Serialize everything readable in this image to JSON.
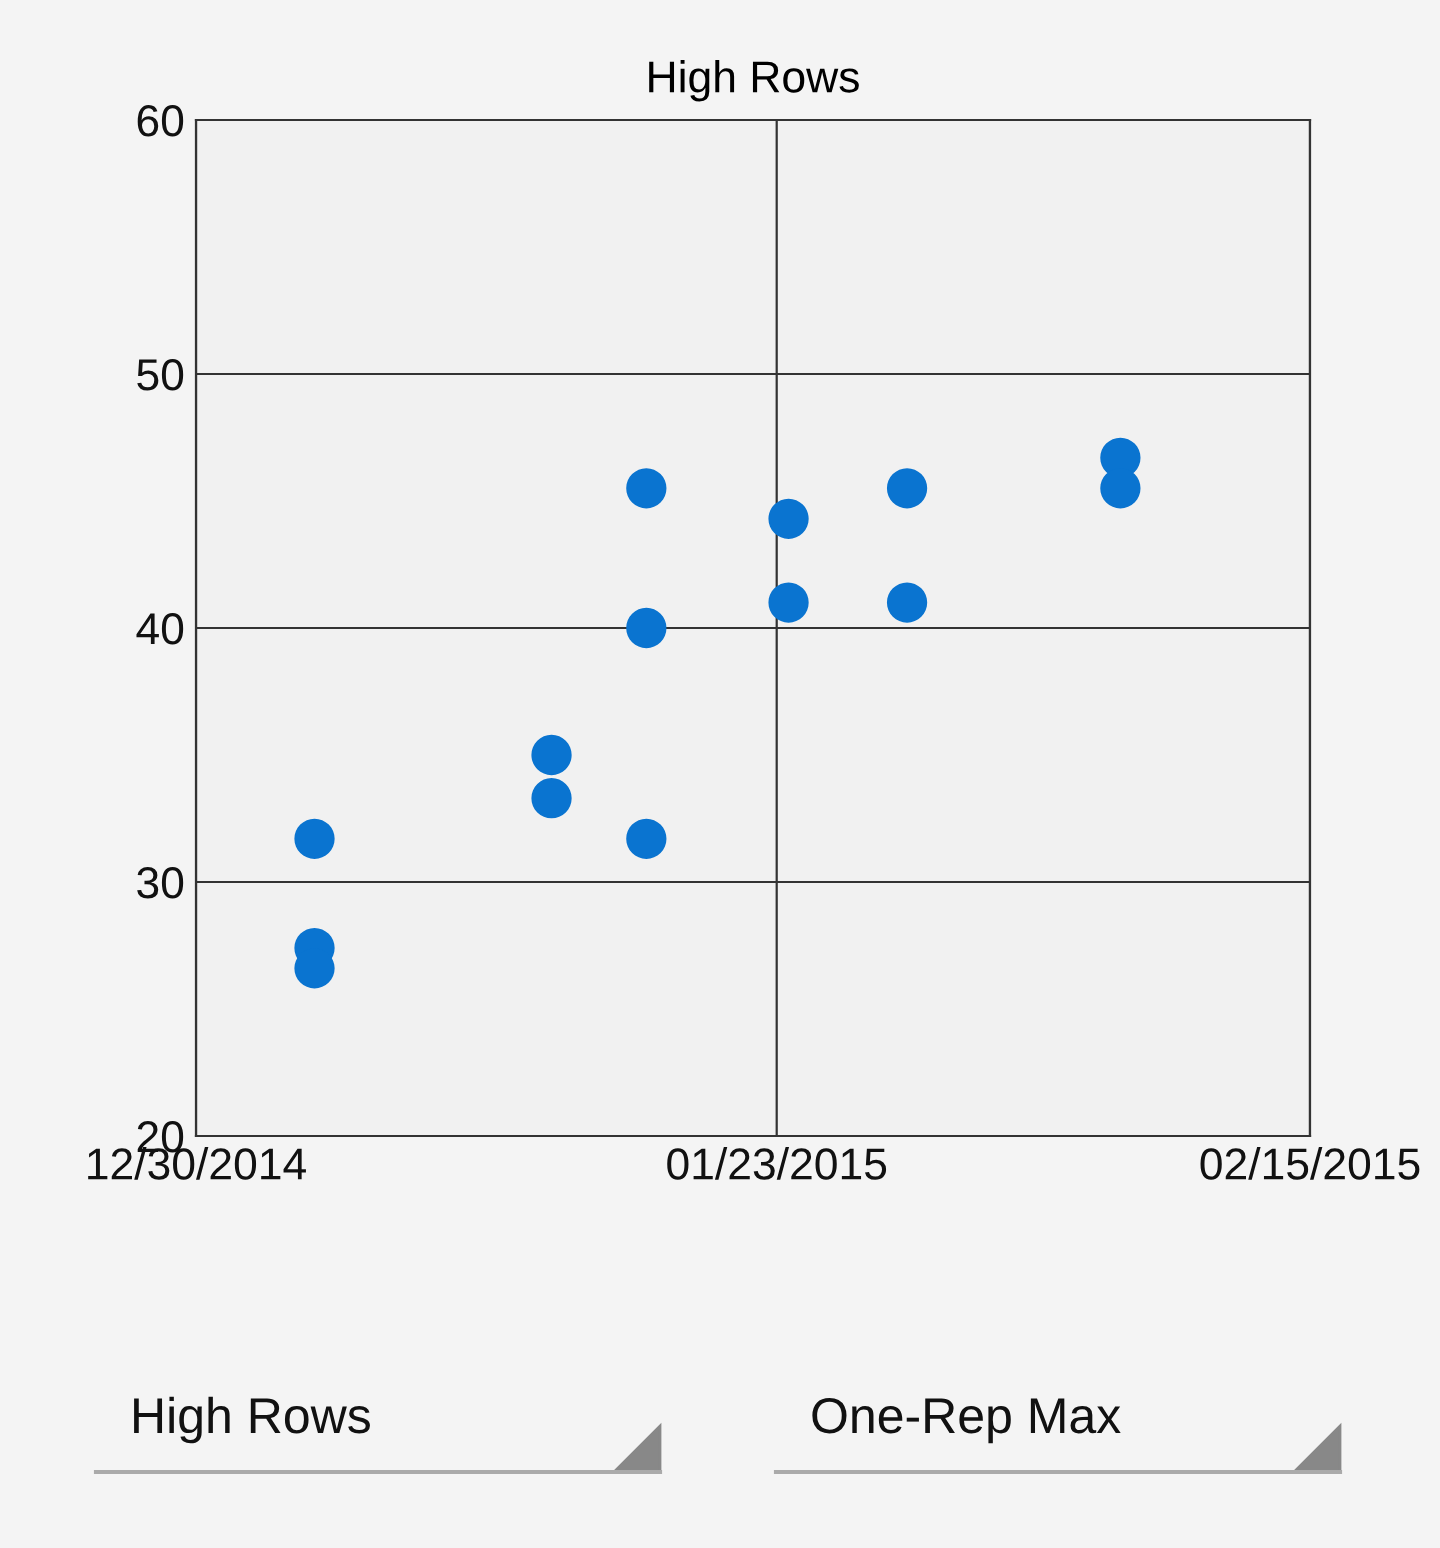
{
  "chart_data": {
    "type": "scatter",
    "title": "High Rows",
    "x": [
      "2015-01-04",
      "2015-01-04",
      "2015-01-04",
      "2015-01-14",
      "2015-01-14",
      "2015-01-18",
      "2015-01-18",
      "2015-01-18",
      "2015-01-24",
      "2015-01-24",
      "2015-01-29",
      "2015-01-29",
      "2015-02-07",
      "2015-02-07"
    ],
    "series": [
      {
        "color": "#0a74d0",
        "values": [
          31.7,
          27.4,
          26.6,
          35.0,
          33.3,
          45.5,
          40.0,
          31.7,
          44.3,
          41.0,
          45.5,
          41.0,
          46.7,
          45.5
        ]
      }
    ],
    "xlim": [
      "2014-12-30",
      "2015-02-15"
    ],
    "xticks": [
      {
        "value": "2014-12-30",
        "label": "12/30/2014"
      },
      {
        "value": "2015-01-23T12:00",
        "label": "01/23/2015"
      },
      {
        "value": "2015-02-15",
        "label": "02/15/2015"
      }
    ],
    "ylim": [
      20,
      60
    ],
    "yticks": [
      20,
      30,
      40,
      50,
      60
    ],
    "grid": true,
    "marker": "circle",
    "annotations": [
      "High Rows",
      "One-Rep Max"
    ]
  }
}
